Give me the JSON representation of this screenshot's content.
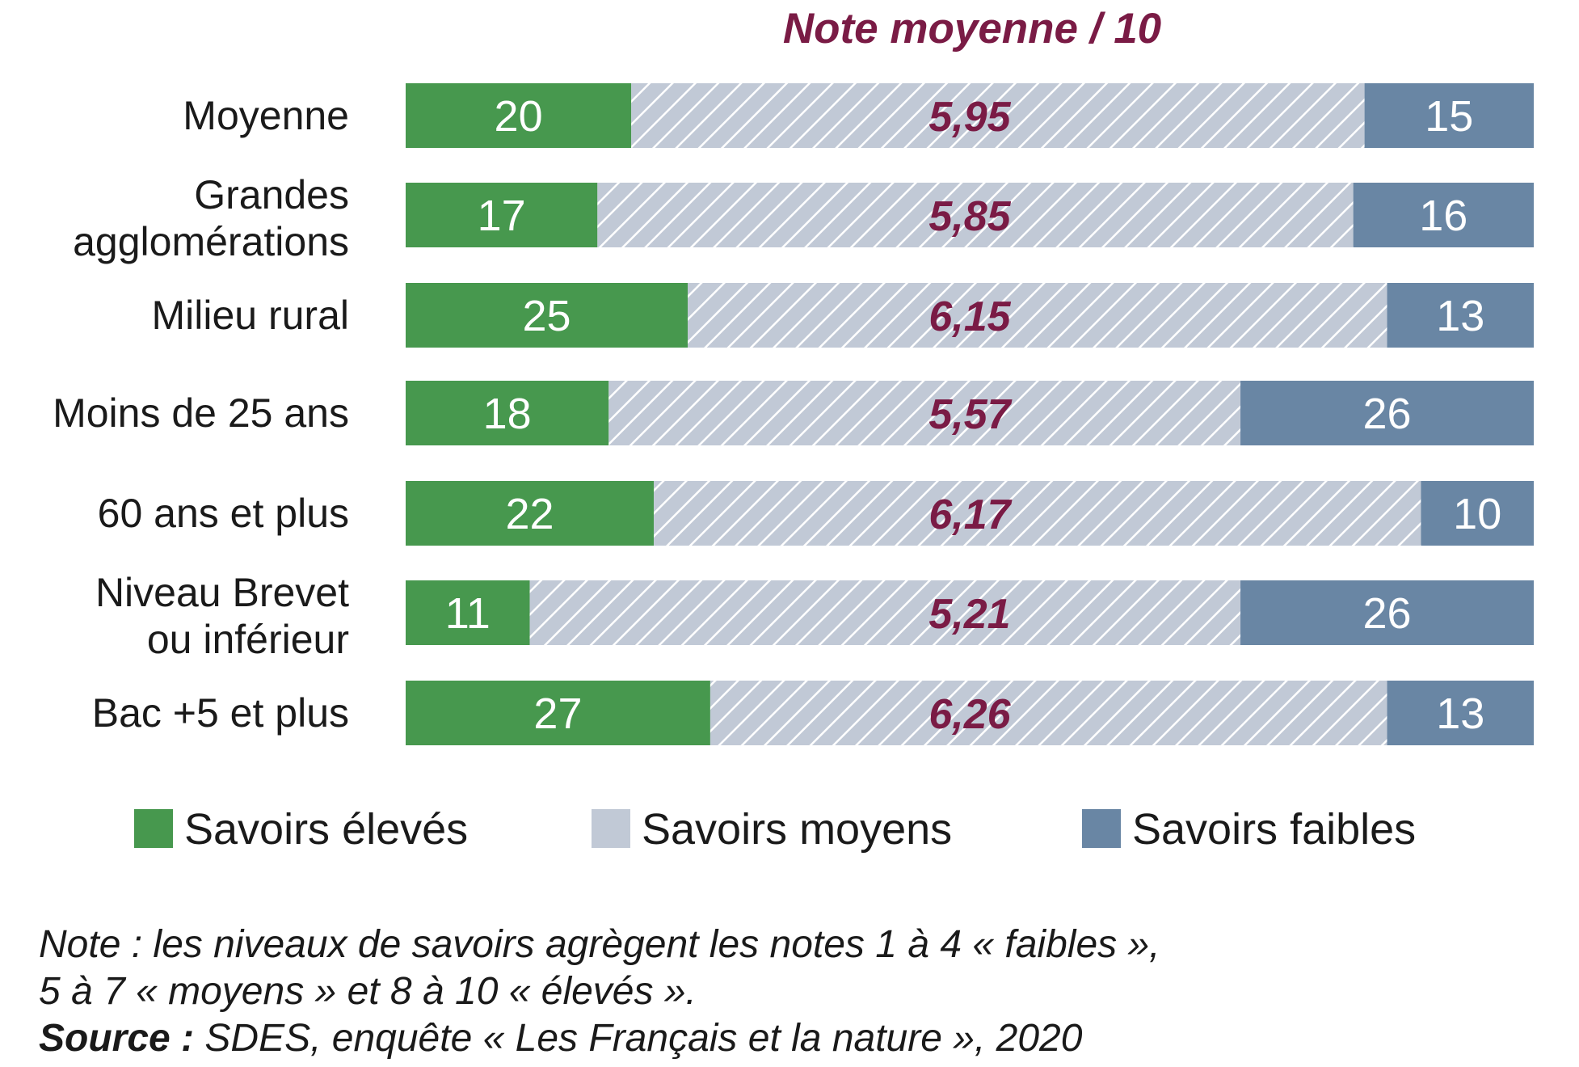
{
  "chart_data": {
    "type": "bar",
    "orientation": "horizontal",
    "stacked": true,
    "title": "Note moyenne / 10",
    "categories": [
      [
        "Moyenne"
      ],
      [
        "Grandes",
        "agglomérations"
      ],
      [
        "Milieu rural"
      ],
      [
        "Moins de 25 ans"
      ],
      [
        "60 ans et plus"
      ],
      [
        "Niveau Brevet",
        "ou inférieur"
      ],
      [
        "Bac +5 et plus"
      ]
    ],
    "series": [
      {
        "name": "Savoirs élevés",
        "color": "#47984e",
        "values": [
          20,
          17,
          25,
          18,
          22,
          11,
          27
        ]
      },
      {
        "name": "Savoirs moyens",
        "color": "#c1c9d6",
        "values": [
          65,
          67,
          62,
          56,
          68,
          63,
          60
        ]
      },
      {
        "name": "Savoirs faibles",
        "color": "#6986a4",
        "values": [
          15,
          16,
          13,
          26,
          10,
          26,
          13
        ]
      }
    ],
    "segment_labels_shown": [
      true,
      false,
      true
    ],
    "note_moyenne": [
      "5,95",
      "5,85",
      "6,15",
      "5,57",
      "6,17",
      "5,21",
      "6,26"
    ],
    "xlim": [
      0,
      100
    ],
    "grid": false,
    "legend_position": "bottom"
  },
  "footnote": {
    "note_line1": "Note : les niveaux de savoirs agrègent les notes 1 à 4 « faibles »,",
    "note_line2": "5 à 7 « moyens » et 8 à 10 « élevés ».",
    "source_label": "Source :",
    "source_text": " SDES, enquête « Les Français et la nature », 2020"
  }
}
